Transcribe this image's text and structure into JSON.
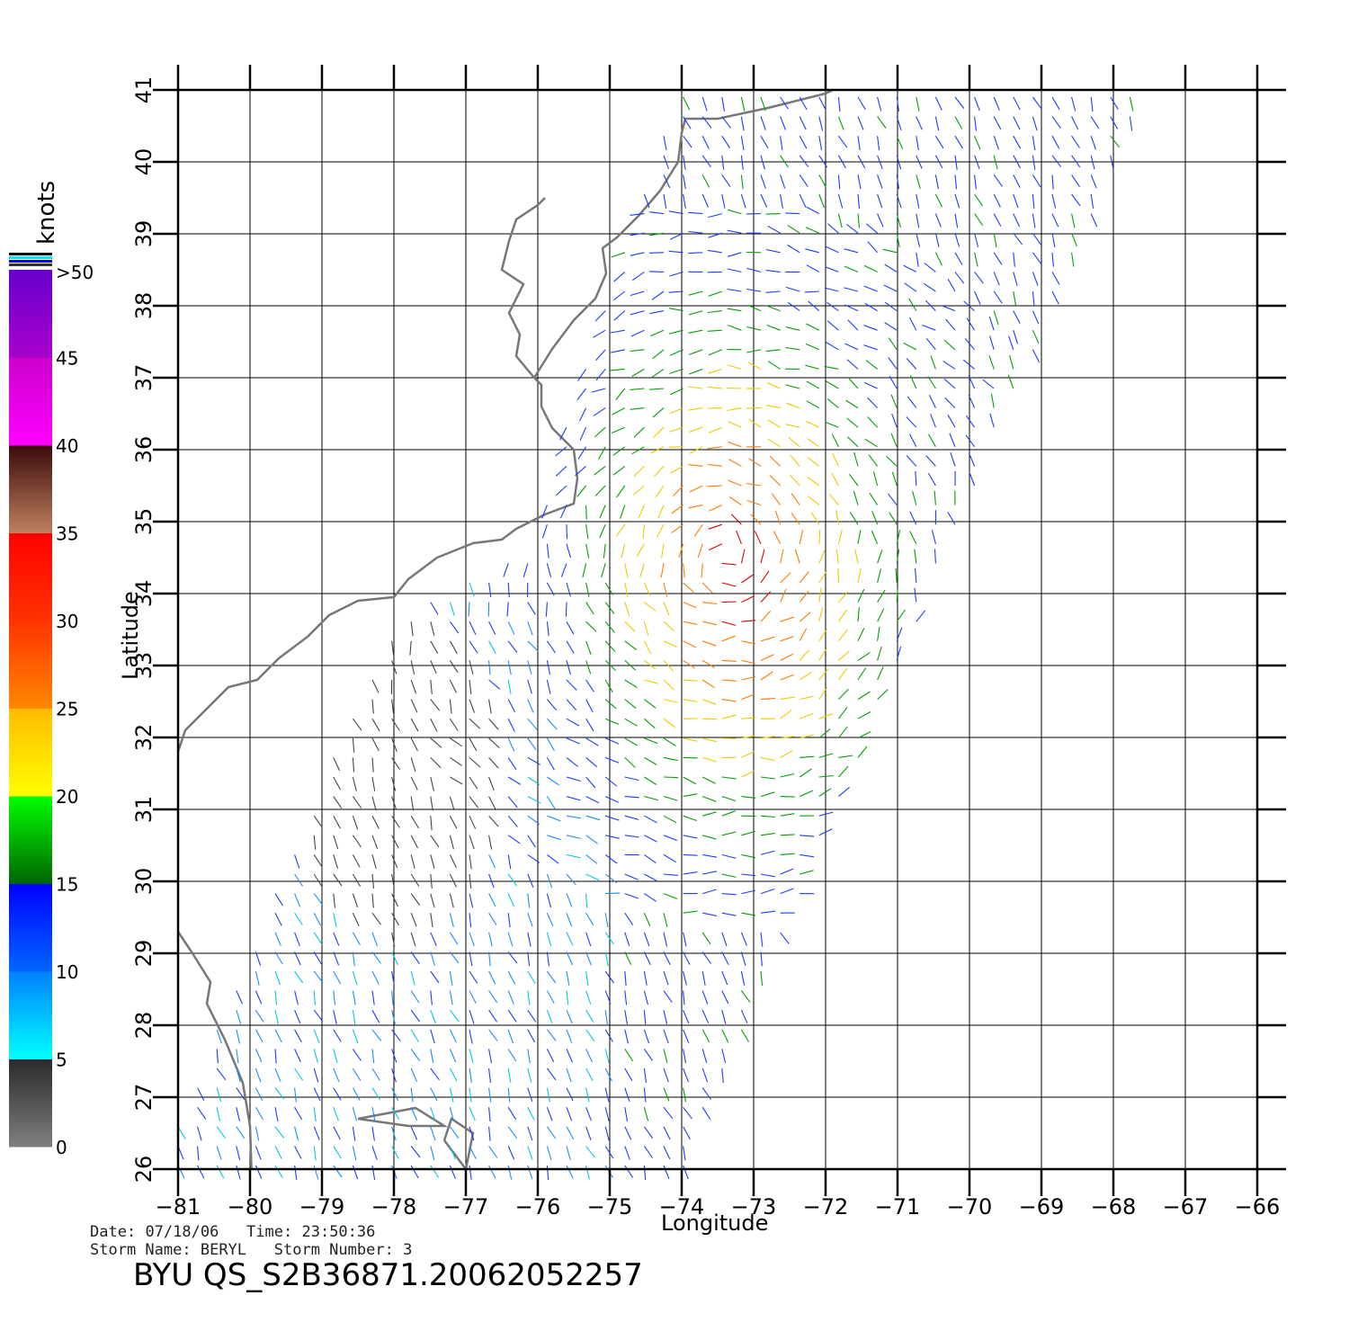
{
  "header": {
    "date_label": "Date:",
    "date": "07/18/06",
    "time_label": "Time:",
    "time": "23:50:36",
    "storm_name_label": "Storm Name:",
    "storm_name": "BERYL",
    "storm_number_label": "Storm Number:",
    "storm_number": "3",
    "product_title": "BYU QS_S2B36871.20062052257"
  },
  "axes": {
    "xlabel": "Longitude",
    "ylabel": "Latitude",
    "lon_range": [
      -81,
      -66
    ],
    "lat_range": [
      26,
      41
    ],
    "lon_ticks": [
      "−81",
      "−80",
      "−79",
      "−78",
      "−77",
      "−76",
      "−75",
      "−74",
      "−73",
      "−72",
      "−71",
      "−70",
      "−69",
      "−68",
      "−67",
      "−66"
    ],
    "lat_ticks": [
      "26",
      "27",
      "28",
      "29",
      "30",
      "31",
      "32",
      "33",
      "34",
      "35",
      "36",
      "37",
      "38",
      "39",
      "40",
      "41"
    ],
    "grid": true
  },
  "colorbar": {
    "unit_label": "knots",
    "tick_labels": [
      "0",
      "5",
      "10",
      "15",
      "20",
      "25",
      "30",
      "35",
      "40",
      "45",
      ">50"
    ],
    "bands": [
      {
        "from": 0,
        "to": 5,
        "colors": [
          "#7f7f7f",
          "#2a2a2a"
        ]
      },
      {
        "from": 5,
        "to": 10,
        "colors": [
          "#00ffff",
          "#0080ff"
        ]
      },
      {
        "from": 10,
        "to": 15,
        "colors": [
          "#0066ff",
          "#0000ff"
        ]
      },
      {
        "from": 15,
        "to": 20,
        "colors": [
          "#006400",
          "#00ff00"
        ]
      },
      {
        "from": 20,
        "to": 25,
        "colors": [
          "#ffff00",
          "#ffbb00"
        ]
      },
      {
        "from": 25,
        "to": 30,
        "colors": [
          "#ff8800",
          "#ff3300"
        ]
      },
      {
        "from": 30,
        "to": 35,
        "colors": [
          "#ff3300",
          "#ff0000"
        ]
      },
      {
        "from": 35,
        "to": 40,
        "colors": [
          "#c08060",
          "#3a0a0a"
        ]
      },
      {
        "from": 40,
        "to": 45,
        "colors": [
          "#ff00ff",
          "#cc00cc"
        ]
      },
      {
        "from": 45,
        "to": 50,
        "colors": [
          "#aa00cc",
          "#6600cc"
        ]
      }
    ]
  },
  "chart_data": {
    "type": "wind-vector-map",
    "title": "",
    "xlabel": "Longitude",
    "ylabel": "Latitude",
    "xlim": [
      -81,
      -66
    ],
    "ylim": [
      26,
      41
    ],
    "storm": "BERYL",
    "approx_storm_center": {
      "lon": -73.4,
      "lat": 34.5
    },
    "speed_regions_knots": [
      {
        "area": "coastal Carolinas / Georgia shelf",
        "speed_range": [
          0,
          5
        ]
      },
      {
        "area": "offshore Florida to Carolinas",
        "speed_range": [
          5,
          12
        ]
      },
      {
        "area": "swath east of -75",
        "speed_range": [
          10,
          15
        ]
      },
      {
        "area": "storm core near -73, 34",
        "speed_range": [
          20,
          35
        ]
      }
    ]
  }
}
